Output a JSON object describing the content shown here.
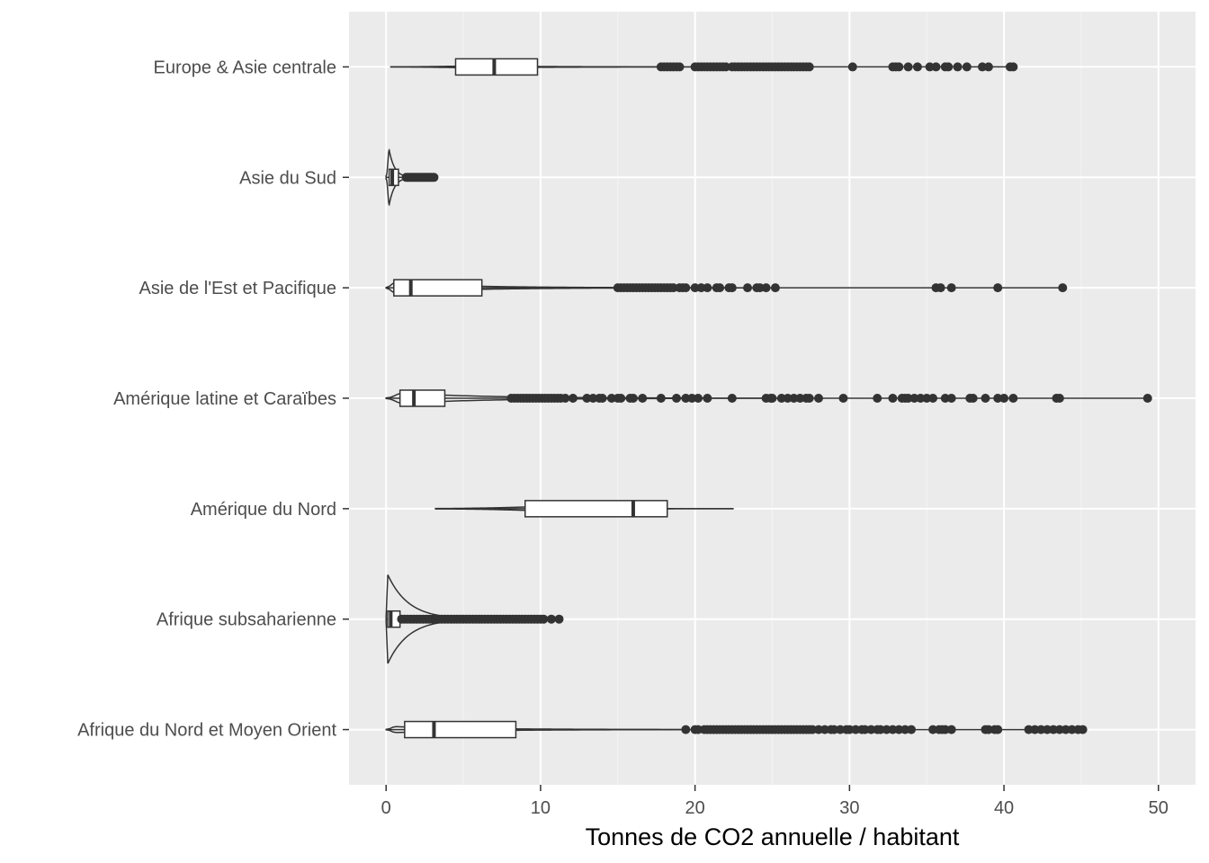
{
  "chart_data": {
    "type": "boxplot-violin",
    "orientation": "horizontal",
    "xlabel": "Tonnes de CO2 annuelle / habitant",
    "ylabel": "",
    "xlim": [
      -2.4,
      52.4
    ],
    "x_ticks": [
      0,
      10,
      20,
      30,
      40,
      50
    ],
    "x_tick_labels": [
      "0",
      "10",
      "20",
      "30",
      "40",
      "50"
    ],
    "grid": true,
    "colors": {
      "panel": "#ebebeb",
      "grid_major": "#ffffff",
      "grid_minor": "#f4f4f4",
      "outline": "#333333",
      "box_fill": "#ffffff",
      "tick_text": "#4d4d4d"
    },
    "categories": [
      "Europe & Asie centrale",
      "Asie du Sud",
      "Asie de l'Est et Pacifique",
      "Amérique latine et Caraïbes",
      "Amérique du Nord",
      "Afrique subsaharienne",
      "Afrique du Nord et Moyen Orient"
    ],
    "groups": [
      {
        "category": "Europe & Asie centrale",
        "violin_range": [
          0.3,
          40.6
        ],
        "violin_peak": 6.5,
        "violin_width": 0.02,
        "q1": 4.5,
        "median": 7.0,
        "q3": 9.8,
        "whisker_low": 0.3,
        "whisker_high": 17.7,
        "outliers": [
          17.8,
          18.0,
          18.2,
          18.4,
          18.6,
          18.8,
          19.0,
          20.0,
          20.2,
          20.4,
          20.6,
          20.8,
          21.0,
          21.2,
          21.4,
          21.6,
          21.8,
          22.0,
          22.4,
          22.6,
          22.8,
          23.0,
          23.2,
          23.4,
          23.6,
          23.8,
          24.0,
          24.2,
          24.4,
          24.6,
          24.8,
          25.0,
          25.2,
          25.4,
          25.6,
          25.8,
          26.0,
          26.2,
          26.4,
          26.6,
          26.8,
          27.0,
          27.2,
          27.4,
          30.2,
          32.8,
          33.0,
          33.2,
          33.8,
          34.4,
          35.2,
          35.6,
          36.2,
          36.4,
          37.0,
          37.6,
          38.6,
          39.0,
          40.4,
          40.6
        ]
      },
      {
        "category": "Asie du Sud",
        "violin_range": [
          0.0,
          3.1
        ],
        "violin_peak": 0.2,
        "violin_width": 0.55,
        "q1": 0.2,
        "median": 0.4,
        "q3": 0.8,
        "whisker_low": 0.0,
        "whisker_high": 1.2,
        "outliers": [
          1.3,
          1.4,
          1.5,
          1.6,
          1.7,
          1.8,
          1.9,
          2.0,
          2.1,
          2.2,
          2.3,
          2.4,
          2.5,
          2.6,
          2.7,
          2.8,
          2.9,
          3.0,
          3.1
        ]
      },
      {
        "category": "Asie de l'Est et Pacifique",
        "violin_range": [
          0.0,
          43.8
        ],
        "violin_peak": 0.5,
        "violin_width": 0.09,
        "q1": 0.5,
        "median": 1.6,
        "q3": 6.2,
        "whisker_low": 0.0,
        "whisker_high": 14.8,
        "outliers": [
          15.0,
          15.2,
          15.4,
          15.6,
          15.8,
          16.0,
          16.2,
          16.4,
          16.6,
          16.8,
          17.0,
          17.2,
          17.4,
          17.6,
          17.8,
          18.0,
          18.2,
          18.4,
          18.6,
          19.0,
          19.2,
          19.4,
          20.0,
          20.4,
          20.8,
          21.4,
          21.6,
          22.2,
          22.4,
          23.4,
          24.0,
          24.2,
          24.6,
          25.2,
          35.6,
          35.9,
          36.6,
          39.6,
          43.8
        ]
      },
      {
        "category": "Amérique latine et Caraïbes",
        "violin_range": [
          0.0,
          49.3
        ],
        "violin_peak": 1.0,
        "violin_width": 0.1,
        "q1": 0.9,
        "median": 1.8,
        "q3": 3.8,
        "whisker_low": 0.0,
        "whisker_high": 8.0,
        "outliers": [
          8.1,
          8.3,
          8.5,
          8.7,
          8.9,
          9.1,
          9.3,
          9.5,
          9.7,
          9.9,
          10.1,
          10.3,
          10.5,
          10.7,
          10.9,
          11.1,
          11.3,
          11.6,
          12.1,
          13.0,
          13.4,
          13.8,
          14.0,
          14.6,
          15.0,
          15.2,
          15.8,
          16.0,
          16.6,
          17.8,
          18.8,
          19.4,
          19.8,
          20.2,
          20.8,
          22.4,
          24.6,
          24.9,
          25.0,
          25.6,
          26.0,
          26.4,
          26.8,
          27.2,
          27.4,
          28.0,
          29.6,
          31.8,
          32.8,
          33.4,
          33.6,
          33.8,
          34.2,
          34.6,
          35.0,
          35.4,
          36.2,
          36.6,
          37.8,
          38.0,
          38.8,
          39.6,
          40.0,
          40.6,
          43.4,
          43.6,
          49.3
        ]
      },
      {
        "category": "Amérique du Nord",
        "violin_range": [
          3.2,
          22.5
        ],
        "violin_peak": 15.0,
        "violin_width": 0.08,
        "q1": 9.0,
        "median": 16.0,
        "q3": 18.2,
        "whisker_low": 3.2,
        "whisker_high": 22.5,
        "outliers": []
      },
      {
        "category": "Afrique subsaharienne",
        "violin_range": [
          0.0,
          11.2
        ],
        "violin_peak": 0.1,
        "violin_width": 0.9,
        "q1": 0.1,
        "median": 0.3,
        "q3": 0.9,
        "whisker_low": 0.0,
        "whisker_high": 0.9,
        "outliers": [
          1.0,
          1.2,
          1.4,
          1.6,
          1.8,
          2.0,
          2.2,
          2.4,
          2.6,
          2.8,
          3.0,
          3.2,
          3.4,
          3.6,
          3.8,
          4.0,
          4.2,
          4.4,
          4.6,
          4.8,
          5.0,
          5.2,
          5.4,
          5.6,
          5.8,
          6.0,
          6.2,
          6.4,
          6.6,
          6.8,
          7.0,
          7.2,
          7.4,
          7.6,
          7.8,
          8.0,
          8.2,
          8.4,
          8.6,
          8.8,
          9.0,
          9.2,
          9.4,
          9.6,
          9.8,
          10.0,
          10.2,
          10.7,
          11.2
        ]
      },
      {
        "category": "Afrique du Nord et Moyen Orient",
        "violin_range": [
          0.0,
          45.1
        ],
        "violin_peak": 0.6,
        "violin_width": 0.06,
        "q1": 1.2,
        "median": 3.1,
        "q3": 8.4,
        "whisker_low": 0.0,
        "whisker_high": 19.2,
        "outliers": [
          19.4,
          20.0,
          20.2,
          20.6,
          20.8,
          21.0,
          21.2,
          21.4,
          21.6,
          21.8,
          22.0,
          22.2,
          22.4,
          22.6,
          22.8,
          23.0,
          23.2,
          23.4,
          23.6,
          23.8,
          24.0,
          24.2,
          24.4,
          24.6,
          24.8,
          25.0,
          25.2,
          25.4,
          25.6,
          25.8,
          26.0,
          26.2,
          26.4,
          26.6,
          26.8,
          27.0,
          27.2,
          27.4,
          27.6,
          28.0,
          28.4,
          28.8,
          29.0,
          29.4,
          29.8,
          30.0,
          30.4,
          30.8,
          31.0,
          31.4,
          31.8,
          32.0,
          32.4,
          32.8,
          33.2,
          33.6,
          34.0,
          35.4,
          35.8,
          36.0,
          36.2,
          36.6,
          38.8,
          39.0,
          39.4,
          39.6,
          41.6,
          42.0,
          42.4,
          42.8,
          43.2,
          43.6,
          44.0,
          44.4,
          44.8,
          45.1
        ]
      }
    ]
  }
}
